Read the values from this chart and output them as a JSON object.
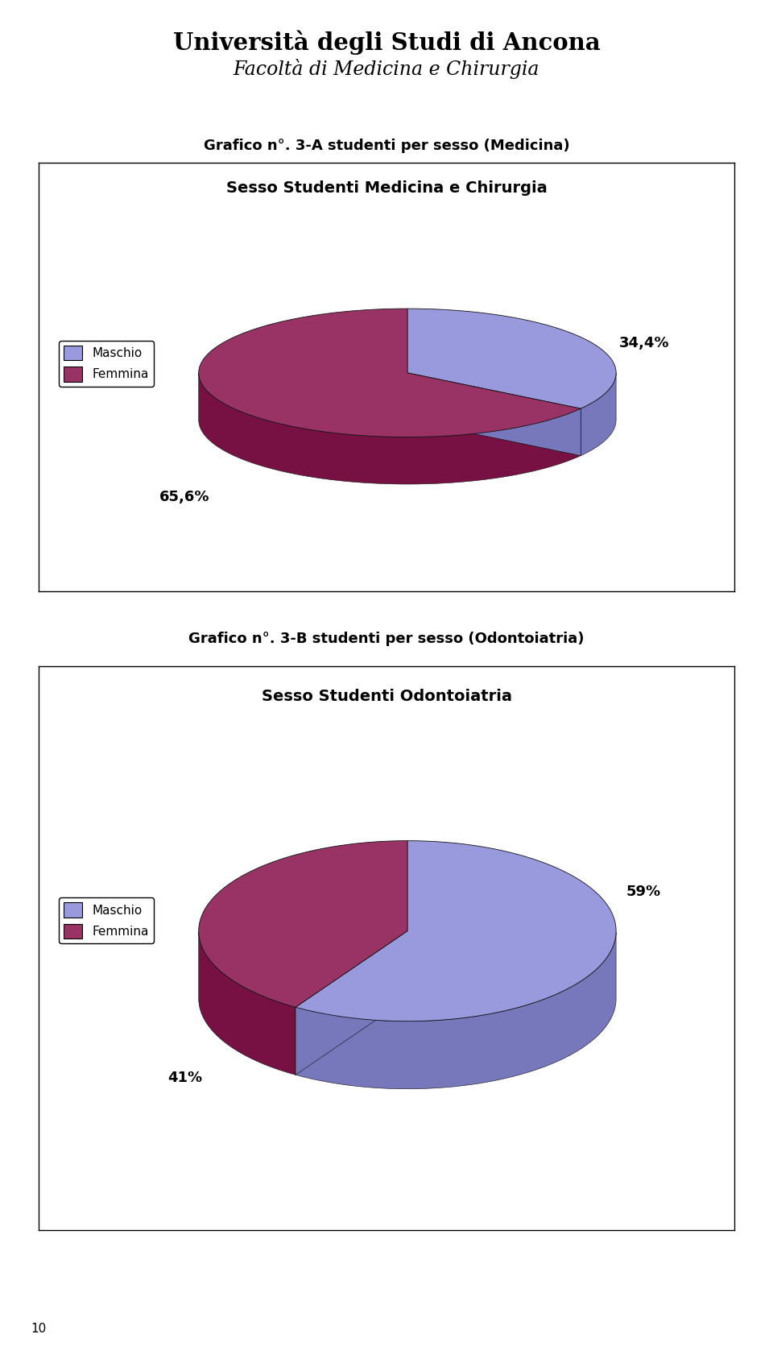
{
  "page_title": "Università degli Studi di Ancona",
  "page_subtitle": "Facoltà di Medicina e Chirurgia",
  "chart1_caption": "Grafico n°. 3-A studenti per sesso (Medicina)",
  "chart1_title": "Sesso Studenti Medicina e Chirurgia",
  "chart1_values": [
    34.4,
    65.6
  ],
  "chart1_labels": [
    "34,4%",
    "65,6%"
  ],
  "chart1_maschio_color_top": "#9999dd",
  "chart1_maschio_color_side": "#7777bb",
  "chart1_femmina_color_top": "#993366",
  "chart1_femmina_color_side": "#771144",
  "chart2_caption": "Grafico n°. 3-B studenti per sesso (Odontoiatria)",
  "chart2_title": "Sesso Studenti Odontoiatria",
  "chart2_values": [
    59.0,
    41.0
  ],
  "chart2_labels": [
    "59%",
    "41%"
  ],
  "chart2_maschio_color_top": "#9999dd",
  "chart2_maschio_color_side": "#7777bb",
  "chart2_femmina_color_top": "#993366",
  "chart2_femmina_color_side": "#771144",
  "bg_color": "#ffffff",
  "page_number": "10",
  "legend_maschio": "Maschio",
  "legend_femmina": "Femmina"
}
